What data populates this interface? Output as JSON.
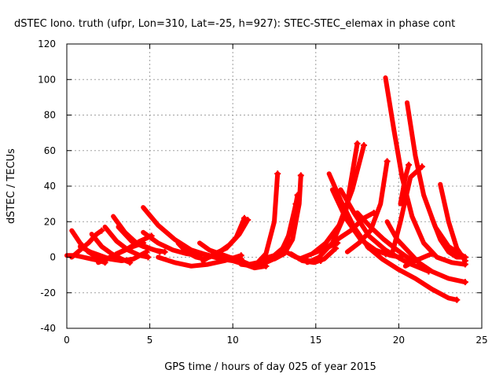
{
  "chart_data": {
    "type": "scatter",
    "title": "dSTEC Iono. truth (ufpr, Lon=310, Lat=-25, h=927): STEC-STEC_elemax in phase cont",
    "xlabel": "GPS time / hours of day 025 of year 2015",
    "ylabel": "dSTEC  / TECUs",
    "xlim": [
      0,
      25
    ],
    "ylim": [
      -40,
      120
    ],
    "xticks": [
      0,
      5,
      10,
      15,
      20,
      25
    ],
    "yticks": [
      -40,
      -20,
      0,
      20,
      40,
      60,
      80,
      100,
      120
    ],
    "grid": true,
    "marker": "+",
    "color": "#ff0000",
    "series": [
      {
        "x": [
          0.0,
          0.5,
          1.0,
          1.5,
          2.0,
          2.3
        ],
        "y": [
          1,
          1,
          0,
          -1,
          -2,
          -3
        ]
      },
      {
        "x": [
          0.3,
          0.8,
          1.3,
          1.8,
          2.3
        ],
        "y": [
          15,
          8,
          3,
          0,
          -2
        ]
      },
      {
        "x": [
          0.3,
          0.8,
          1.3,
          1.8,
          2.1
        ],
        "y": [
          0,
          4,
          8,
          13,
          15
        ]
      },
      {
        "x": [
          0.8,
          1.4,
          2.0,
          2.6,
          3.3,
          4.0,
          4.8
        ],
        "y": [
          6,
          3,
          1,
          -1,
          -2,
          -1,
          3
        ]
      },
      {
        "x": [
          1.5,
          2.1,
          2.7,
          3.3,
          3.8
        ],
        "y": [
          13,
          6,
          2,
          -1,
          -3
        ]
      },
      {
        "x": [
          1.9,
          2.6,
          3.3,
          4.0,
          4.6
        ],
        "y": [
          -3,
          0,
          3,
          6,
          8
        ]
      },
      {
        "x": [
          2.3,
          3.0,
          3.7,
          4.4,
          4.9
        ],
        "y": [
          17,
          9,
          4,
          1,
          0
        ]
      },
      {
        "x": [
          2.8,
          3.5,
          4.2,
          5.0,
          5.6
        ],
        "y": [
          23,
          14,
          8,
          5,
          3
        ]
      },
      {
        "x": [
          3.1,
          3.9,
          4.6,
          5.3,
          5.9
        ],
        "y": [
          17,
          9,
          6,
          4,
          3
        ]
      },
      {
        "x": [
          3.0,
          3.7,
          4.4,
          5.1
        ],
        "y": [
          2,
          5,
          9,
          12
        ]
      },
      {
        "x": [
          4.6,
          5.5,
          6.5,
          7.5,
          8.5,
          9.3
        ],
        "y": [
          28,
          18,
          10,
          4,
          1,
          -1
        ]
      },
      {
        "x": [
          4.6,
          5.5,
          6.4,
          7.2,
          8.0
        ],
        "y": [
          14,
          8,
          4,
          2,
          1
        ]
      },
      {
        "x": [
          5.5,
          6.5,
          7.5,
          8.5,
          9.5,
          10.5
        ],
        "y": [
          0,
          -3,
          -5,
          -4,
          -2,
          1
        ]
      },
      {
        "x": [
          6.7,
          7.2,
          7.8,
          8.3
        ],
        "y": [
          8,
          3,
          0,
          -1
        ]
      },
      {
        "x": [
          7.5,
          8.2,
          9.0,
          9.8,
          10.5
        ],
        "y": [
          4,
          2,
          0,
          -1,
          -1
        ]
      },
      {
        "x": [
          8.0,
          8.6,
          9.2,
          9.8,
          10.3
        ],
        "y": [
          8,
          4,
          2,
          0,
          -1
        ]
      },
      {
        "x": [
          8.2,
          8.9,
          9.6,
          10.2,
          10.7
        ],
        "y": [
          -2,
          2,
          5,
          11,
          22
        ]
      },
      {
        "x": [
          8.6,
          9.2,
          9.8,
          10.4,
          10.9
        ],
        "y": [
          0,
          3,
          7,
          13,
          21
        ]
      },
      {
        "x": [
          9.3,
          10.0,
          10.7,
          11.3,
          12.0
        ],
        "y": [
          -1,
          -2,
          -4,
          -6,
          -5
        ]
      },
      {
        "x": [
          9.8,
          10.5,
          11.0,
          11.5,
          12.0,
          12.5,
          12.7
        ],
        "y": [
          -1,
          -2,
          -4,
          -3,
          2,
          20,
          47
        ]
      },
      {
        "x": [
          10.5,
          11.3,
          12.0,
          12.7,
          13.3,
          13.8
        ],
        "y": [
          -4,
          -5,
          -3,
          0,
          10,
          30
        ]
      },
      {
        "x": [
          11.8,
          12.5,
          13.0,
          13.5,
          13.9
        ],
        "y": [
          -1,
          1,
          5,
          15,
          35
        ]
      },
      {
        "x": [
          12.5,
          13.1,
          13.6,
          14.0,
          14.1
        ],
        "y": [
          -1,
          2,
          10,
          30,
          46
        ]
      },
      {
        "x": [
          13.0,
          13.8,
          14.6,
          15.3
        ],
        "y": [
          4,
          0,
          -2,
          -2
        ]
      },
      {
        "x": [
          13.5,
          14.2,
          14.9,
          15.5,
          16.2
        ],
        "y": [
          2,
          -2,
          -3,
          -1,
          5
        ]
      },
      {
        "x": [
          14.0,
          14.8,
          15.6,
          16.3
        ],
        "y": [
          -1,
          2,
          5,
          8
        ]
      },
      {
        "x": [
          14.5,
          15.2,
          16.0,
          16.8,
          17.5
        ],
        "y": [
          -3,
          0,
          8,
          25,
          64
        ]
      },
      {
        "x": [
          14.8,
          15.6,
          16.4,
          17.2,
          17.9
        ],
        "y": [
          2,
          8,
          18,
          38,
          63
        ]
      },
      {
        "x": [
          15.5,
          16.3,
          17.1,
          17.9,
          18.5
        ],
        "y": [
          4,
          10,
          15,
          22,
          25
        ]
      },
      {
        "x": [
          15.8,
          16.5,
          17.3,
          18.2,
          19.2
        ],
        "y": [
          47,
          32,
          17,
          5,
          2
        ]
      },
      {
        "x": [
          16.0,
          16.8,
          17.7,
          18.6,
          19.5,
          20.1
        ],
        "y": [
          38,
          22,
          10,
          4,
          1,
          0
        ]
      },
      {
        "x": [
          16.5,
          17.3,
          18.2,
          19.2,
          20.5,
          21.8
        ],
        "y": [
          38,
          25,
          12,
          4,
          -3,
          -8
        ]
      },
      {
        "x": [
          16.9,
          17.6,
          18.3,
          18.9,
          19.3
        ],
        "y": [
          3,
          8,
          15,
          30,
          54
        ]
      },
      {
        "x": [
          17.5,
          18.3,
          19.1,
          19.9,
          20.8
        ],
        "y": [
          25,
          17,
          10,
          4,
          -2
        ]
      },
      {
        "x": [
          18.1,
          19.0,
          20.0,
          21.0,
          22.0,
          23.0,
          23.5
        ],
        "y": [
          6,
          -1,
          -7,
          -12,
          -18,
          -23,
          -24
        ]
      },
      {
        "x": [
          19.2,
          19.7,
          20.2,
          20.8,
          21.5,
          22.3,
          23.2,
          24.0
        ],
        "y": [
          101,
          72,
          45,
          23,
          8,
          0,
          -3,
          -4
        ]
      },
      {
        "x": [
          19.3,
          19.9,
          20.5,
          21.2,
          22.0,
          23.0,
          24.0
        ],
        "y": [
          20,
          10,
          4,
          -3,
          -8,
          -12,
          -14
        ]
      },
      {
        "x": [
          19.6,
          20.1,
          20.7,
          21.4
        ],
        "y": [
          2,
          20,
          45,
          51
        ]
      },
      {
        "x": [
          20.1,
          20.4,
          20.6
        ],
        "y": [
          30,
          45,
          52
        ]
      },
      {
        "x": [
          20.5,
          21.0,
          21.5,
          22.2,
          23.0,
          24.0
        ],
        "y": [
          87,
          57,
          35,
          17,
          6,
          0
        ]
      },
      {
        "x": [
          20.4,
          21.0,
          21.5,
          22.0
        ],
        "y": [
          -5,
          -2,
          0,
          2
        ]
      },
      {
        "x": [
          22.0,
          22.5,
          23.0,
          23.5,
          24.0
        ],
        "y": [
          22,
          10,
          3,
          0,
          0
        ]
      },
      {
        "x": [
          22.5,
          23.0,
          23.5,
          24.0
        ],
        "y": [
          41,
          20,
          5,
          -2
        ]
      }
    ]
  }
}
